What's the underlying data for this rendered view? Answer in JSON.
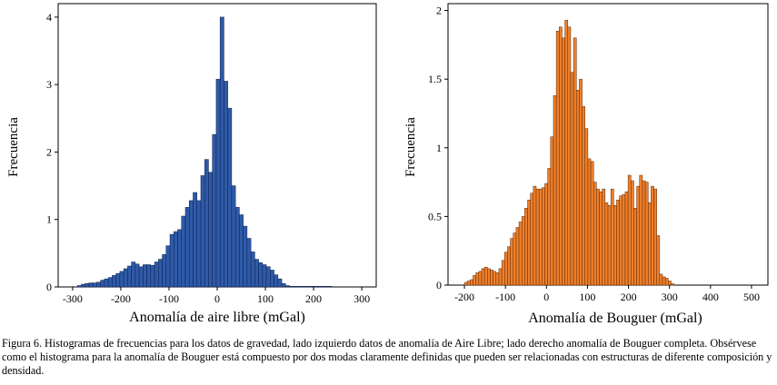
{
  "chart_data": [
    {
      "type": "bar",
      "name": "aire-libre",
      "title": "",
      "xlabel": "Anomalía de aire libre (mGal)",
      "ylabel": "Frecuencia",
      "xlim": [
        -330,
        330
      ],
      "ylim": [
        0,
        4.2
      ],
      "xticks": [
        -300,
        -200,
        -100,
        0,
        100,
        200,
        300
      ],
      "xtick_labels": [
        "-300",
        "-200",
        "-100",
        "0",
        "100",
        "200",
        "300"
      ],
      "yticks": [
        0,
        1,
        2,
        3,
        4
      ],
      "ytick_labels": [
        "0",
        "1",
        "2",
        "3",
        "4"
      ],
      "bin_start": -290,
      "bin_width": 8,
      "values": [
        0.02,
        0.04,
        0.05,
        0.06,
        0.06,
        0.07,
        0.1,
        0.12,
        0.14,
        0.17,
        0.2,
        0.23,
        0.27,
        0.31,
        0.37,
        0.34,
        0.3,
        0.33,
        0.33,
        0.32,
        0.37,
        0.41,
        0.48,
        0.61,
        0.78,
        0.82,
        0.85,
        1.05,
        1.18,
        1.28,
        1.4,
        1.28,
        1.65,
        1.89,
        1.7,
        2.26,
        3.08,
        4.0,
        3.05,
        2.65,
        1.5,
        1.18,
        1.07,
        0.9,
        0.72,
        0.52,
        0.41,
        0.36,
        0.33,
        0.3,
        0.25,
        0.18,
        0.12,
        0.05,
        0.02,
        0.01,
        0.01,
        0.01,
        0.01,
        0.01,
        0.01,
        0.01,
        0.01,
        0.01,
        0.01,
        0.01
      ],
      "color": "#2e5aa8",
      "edge_color": "#0e1f4a"
    },
    {
      "type": "bar",
      "name": "bouguer",
      "title": "",
      "xlabel": "Anomalía de Bouguer (mGal)",
      "ylabel": "Frecuencia",
      "xlim": [
        -240,
        540
      ],
      "ylim": [
        0,
        2.05
      ],
      "xticks": [
        -200,
        -100,
        0,
        100,
        200,
        300,
        400,
        500
      ],
      "xtick_labels": [
        "-200",
        "-100",
        "0",
        "100",
        "200",
        "300",
        "400",
        "500"
      ],
      "yticks": [
        0,
        0.5,
        1,
        1.5,
        2
      ],
      "ytick_labels": [
        "0",
        "0.5",
        "1",
        "1.5",
        "2"
      ],
      "bin_start": -200,
      "bin_width": 7,
      "values": [
        0.02,
        0.03,
        0.04,
        0.07,
        0.09,
        0.1,
        0.12,
        0.13,
        0.12,
        0.11,
        0.1,
        0.09,
        0.12,
        0.18,
        0.24,
        0.28,
        0.34,
        0.38,
        0.42,
        0.46,
        0.5,
        0.56,
        0.62,
        0.67,
        0.72,
        0.7,
        0.7,
        0.71,
        0.74,
        0.85,
        1.08,
        1.38,
        1.85,
        1.88,
        1.8,
        1.93,
        1.88,
        1.55,
        1.8,
        1.42,
        1.5,
        1.3,
        1.14,
        0.92,
        0.9,
        0.75,
        0.7,
        0.68,
        0.7,
        0.6,
        0.58,
        0.7,
        0.58,
        0.62,
        0.65,
        0.66,
        0.68,
        0.8,
        0.76,
        0.56,
        0.72,
        0.8,
        0.76,
        0.75,
        0.6,
        0.72,
        0.7,
        0.36,
        0.08,
        0.06,
        0.05,
        0.03,
        0.01
      ],
      "color": "#ef7f2a",
      "edge_color": "#5a2a08"
    }
  ],
  "caption": "Figura 6. Histogramas de frecuencias para los datos de gravedad, lado izquierdo datos de anomalía de Aire Libre; lado derecho anomalía de Bouguer completa. Obsérvese como el histograma para la anomalía de Bouguer está compuesto por dos modas claramente definidas que pueden ser relacionadas con estructuras de diferente composición y densidad."
}
